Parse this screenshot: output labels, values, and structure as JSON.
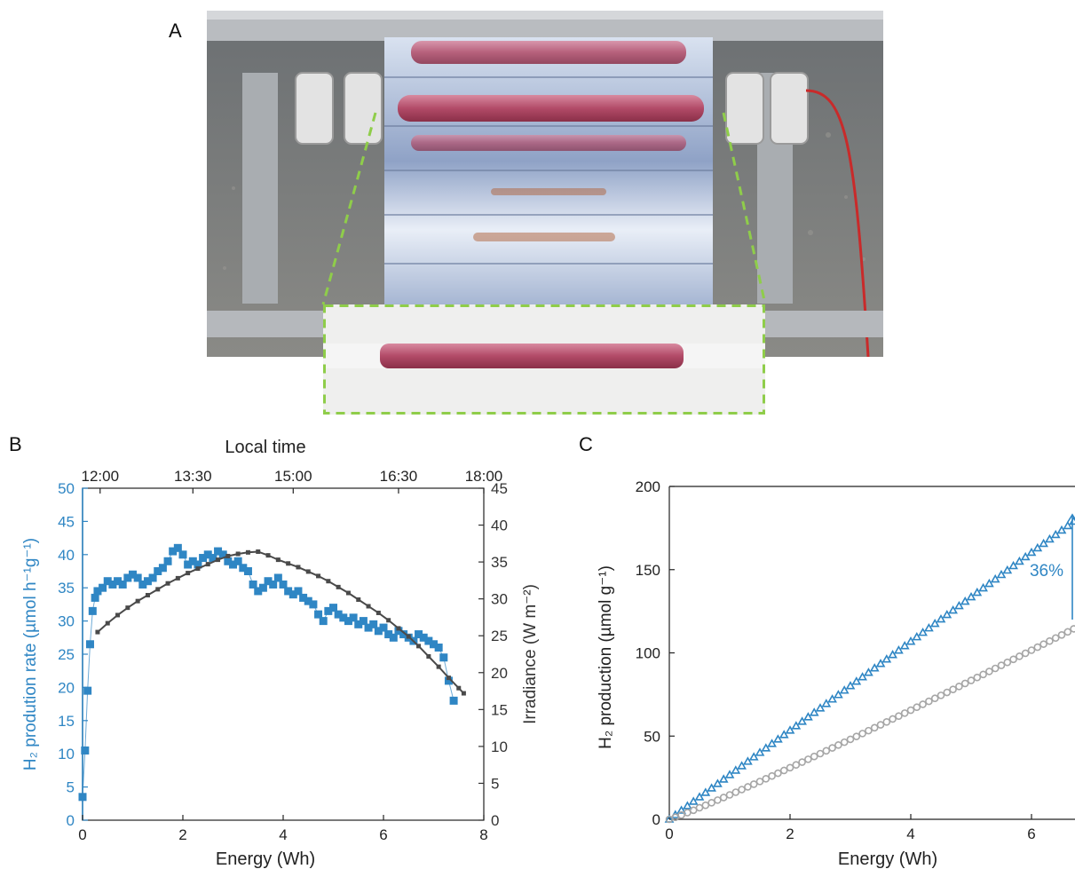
{
  "panels": {
    "a": "A",
    "b": "B",
    "c": "C"
  },
  "photo": {
    "description": "solar photoreactor photo"
  },
  "colors": {
    "blue": "#2f86c4",
    "dark": "#4a4a4a",
    "gray": "#a6a6a6",
    "frame": "#8fcd4a"
  },
  "chart_data": [
    {
      "type": "scatter",
      "panel": "B",
      "xlabel": "Energy (Wh)",
      "top_xlabel": "Local time",
      "top_ticks": [
        "12:00",
        "13:30",
        "15:00",
        "16:30",
        "18:00"
      ],
      "top_tick_positions_wh": [
        0.35,
        2.2,
        4.2,
        6.3,
        8.0
      ],
      "xlim": [
        0,
        8
      ],
      "xticks": [
        "0",
        "2",
        "4",
        "6",
        "8"
      ],
      "ylabel_left": "H₂ prodution rate (µmol h⁻¹g⁻¹)",
      "ylim_left": [
        0,
        50
      ],
      "yticks_left": [
        "0",
        "5",
        "10",
        "15",
        "20",
        "25",
        "30",
        "35",
        "40",
        "45",
        "50"
      ],
      "ylabel_right": "Irradiance (W m⁻²)",
      "ylim_right": [
        0,
        45
      ],
      "yticks_right": [
        "0",
        "5",
        "10",
        "15",
        "20",
        "25",
        "30",
        "35",
        "40",
        "45"
      ],
      "series": [
        {
          "axis": "left",
          "color": "#2f86c4",
          "marker": "square",
          "x": [
            0.0,
            0.05,
            0.1,
            0.15,
            0.2,
            0.25,
            0.3,
            0.4,
            0.5,
            0.6,
            0.7,
            0.8,
            0.9,
            1.0,
            1.1,
            1.2,
            1.3,
            1.4,
            1.5,
            1.6,
            1.7,
            1.8,
            1.9,
            2.0,
            2.1,
            2.2,
            2.3,
            2.4,
            2.5,
            2.6,
            2.7,
            2.8,
            2.9,
            3.0,
            3.1,
            3.2,
            3.3,
            3.4,
            3.5,
            3.6,
            3.7,
            3.8,
            3.9,
            4.0,
            4.1,
            4.2,
            4.3,
            4.4,
            4.5,
            4.6,
            4.7,
            4.8,
            4.9,
            5.0,
            5.1,
            5.2,
            5.3,
            5.4,
            5.5,
            5.6,
            5.7,
            5.8,
            5.9,
            6.0,
            6.1,
            6.2,
            6.3,
            6.4,
            6.5,
            6.6,
            6.7,
            6.8,
            6.9,
            7.0,
            7.1,
            7.2,
            7.3,
            7.4
          ],
          "y": [
            3.5,
            10.5,
            19.5,
            26.5,
            31.5,
            33.5,
            34.5,
            35.0,
            36.0,
            35.5,
            36.0,
            35.5,
            36.5,
            37.0,
            36.5,
            35.5,
            36.0,
            36.5,
            37.5,
            38.0,
            39.0,
            40.5,
            41.0,
            40.0,
            38.5,
            39.0,
            38.5,
            39.5,
            40.0,
            39.5,
            40.5,
            40.0,
            39.0,
            38.5,
            39.0,
            38.0,
            37.5,
            35.5,
            34.5,
            35.0,
            36.0,
            35.5,
            36.5,
            35.5,
            34.5,
            34.0,
            34.5,
            33.5,
            33.0,
            32.5,
            31.0,
            30.0,
            31.5,
            32.0,
            31.0,
            30.5,
            30.0,
            30.5,
            29.5,
            30.0,
            29.0,
            29.5,
            28.5,
            29.0,
            28.0,
            27.5,
            28.5,
            28.0,
            27.5,
            27.0,
            28.0,
            27.5,
            27.0,
            26.5,
            26.0,
            24.5,
            21.0,
            18.0
          ]
        },
        {
          "axis": "right",
          "color": "#4a4a4a",
          "marker": "small-square",
          "x": [
            0.3,
            0.5,
            0.7,
            0.9,
            1.1,
            1.3,
            1.5,
            1.7,
            1.9,
            2.1,
            2.3,
            2.5,
            2.7,
            2.9,
            3.1,
            3.3,
            3.5,
            3.7,
            3.9,
            4.1,
            4.3,
            4.5,
            4.7,
            4.9,
            5.1,
            5.3,
            5.5,
            5.7,
            5.9,
            6.1,
            6.3,
            6.5,
            6.7,
            6.9,
            7.1,
            7.3,
            7.5,
            7.6
          ],
          "y": [
            25.5,
            26.7,
            27.8,
            28.8,
            29.7,
            30.5,
            31.3,
            32.1,
            32.8,
            33.5,
            34.1,
            34.7,
            35.3,
            35.8,
            36.1,
            36.3,
            36.4,
            35.9,
            35.3,
            34.8,
            34.3,
            33.7,
            33.1,
            32.4,
            31.6,
            30.8,
            29.9,
            29.0,
            28.1,
            27.1,
            26.0,
            24.9,
            23.6,
            22.2,
            20.8,
            19.3,
            17.9,
            17.2
          ]
        }
      ]
    },
    {
      "type": "scatter",
      "panel": "C",
      "xlabel": "Energy (Wh)",
      "xlim": [
        0,
        7
      ],
      "xticks": [
        "0",
        "2",
        "4",
        "6"
      ],
      "ylabel": "H₂ production (µmol g⁻¹)",
      "ylim": [
        0,
        200
      ],
      "yticks": [
        "0",
        "50",
        "100",
        "150",
        "200"
      ],
      "annotation": "36%",
      "series": [
        {
          "color": "#2f86c4",
          "marker": "triangle",
          "x_start": 0,
          "x_end": 7,
          "y_start": 0,
          "y_end": 187
        },
        {
          "color": "#a6a6a6",
          "marker": "circle",
          "x_start": 0,
          "x_end": 7,
          "y_start": 0,
          "y_end": 120
        }
      ]
    }
  ]
}
